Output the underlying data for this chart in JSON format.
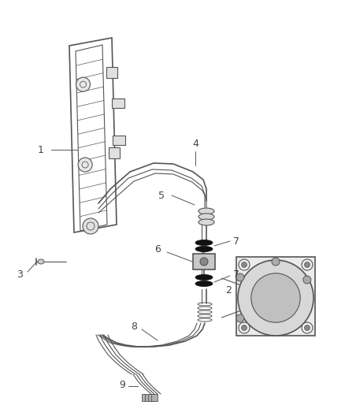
{
  "background_color": "#ffffff",
  "line_color": "#555555",
  "dark_color": "#333333",
  "label_color": "#444444",
  "fig_width": 4.38,
  "fig_height": 5.33,
  "dpi": 100
}
